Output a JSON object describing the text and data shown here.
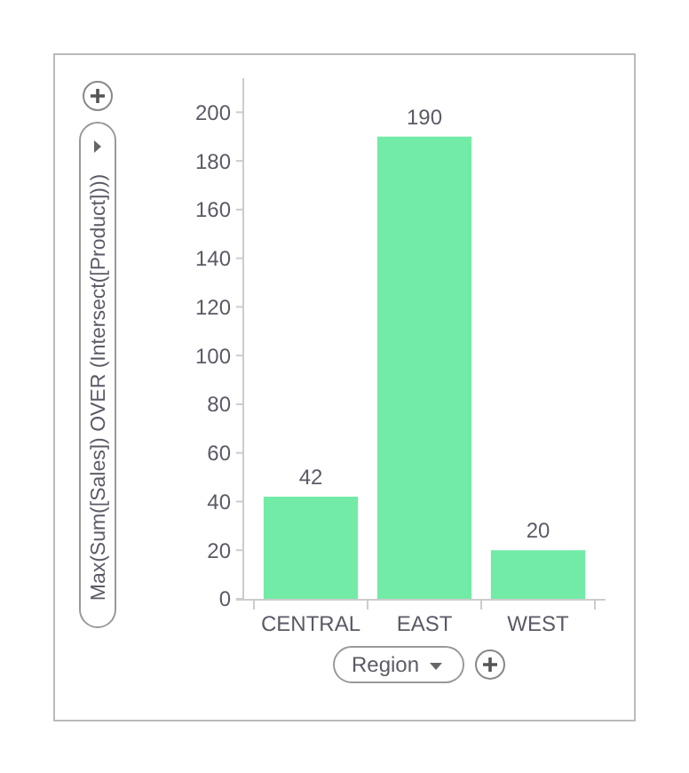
{
  "chart_data": {
    "type": "bar",
    "categories": [
      "CENTRAL",
      "EAST",
      "WEST"
    ],
    "values": [
      42,
      190,
      20
    ],
    "color": "#72eba7",
    "ylim": [
      0,
      214
    ],
    "yticks": [
      0,
      20,
      40,
      60,
      80,
      100,
      120,
      140,
      160,
      180,
      200
    ],
    "data_labels": true,
    "grid": false,
    "xlabel": "Region",
    "ylabel": "Max(Sum([Sales]) OVER (Intersect([Product])))"
  }
}
